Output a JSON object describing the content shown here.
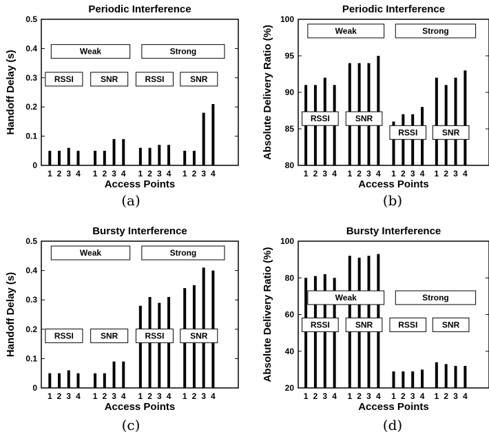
{
  "chart_data": [
    {
      "type": "bar",
      "title": "Periodic Interference",
      "xlabel": "Access Points",
      "ylabel": "Handoff Delay (s)",
      "ylim": [
        0,
        0.5
      ],
      "yticks": [
        "0",
        "0.1",
        "0.2",
        "0.3",
        "0.4",
        "0.5"
      ],
      "categories": [
        "1",
        "2",
        "3",
        "4"
      ],
      "series": [
        {
          "name": "Weak RSSI",
          "values": [
            0.05,
            0.05,
            0.06,
            0.05
          ]
        },
        {
          "name": "Weak SNR",
          "values": [
            0.05,
            0.05,
            0.09,
            0.09
          ]
        },
        {
          "name": "Strong RSSI",
          "values": [
            0.06,
            0.06,
            0.07,
            0.07
          ]
        },
        {
          "name": "Strong SNR",
          "values": [
            0.05,
            0.05,
            0.18,
            0.21
          ]
        }
      ],
      "annotations": [
        {
          "text": "Weak",
          "level": "top",
          "span": "left"
        },
        {
          "text": "Strong",
          "level": "top",
          "span": "right"
        },
        {
          "text": "RSSI",
          "level": "low",
          "group": 0
        },
        {
          "text": "SNR",
          "level": "low",
          "group": 1
        },
        {
          "text": "RSSI",
          "level": "low",
          "group": 2
        },
        {
          "text": "SNR",
          "level": "low",
          "group": 3
        }
      ],
      "caption": "(a)"
    },
    {
      "type": "bar",
      "title": "Periodic Interference",
      "xlabel": "Access Points",
      "ylabel": "Absolute Delivery Ratio (%)",
      "ylim": [
        80,
        100
      ],
      "yticks": [
        "80",
        "85",
        "90",
        "95",
        "100"
      ],
      "categories": [
        "1",
        "2",
        "3",
        "4"
      ],
      "series": [
        {
          "name": "Weak RSSI",
          "values": [
            91,
            91,
            92,
            91
          ]
        },
        {
          "name": "Weak SNR",
          "values": [
            94,
            94,
            94,
            95
          ]
        },
        {
          "name": "Strong RSSI",
          "values": [
            86,
            87,
            87,
            88
          ]
        },
        {
          "name": "Strong SNR",
          "values": [
            92,
            91,
            92,
            93
          ]
        }
      ],
      "annotations": [
        {
          "text": "Weak",
          "level": "top",
          "span": "left"
        },
        {
          "text": "Strong",
          "level": "top",
          "span": "right"
        },
        {
          "text": "RSSI",
          "level": "mid",
          "group": 0
        },
        {
          "text": "SNR",
          "level": "mid",
          "group": 1
        },
        {
          "text": "RSSI",
          "level": "low",
          "group": 2
        },
        {
          "text": "SNR",
          "level": "low",
          "group": 3
        }
      ],
      "caption": "(b)"
    },
    {
      "type": "bar",
      "title": "Bursty Interference",
      "xlabel": "Access Points",
      "ylabel": "Handoff Delay (s)",
      "ylim": [
        0,
        0.5
      ],
      "yticks": [
        "0",
        "0.1",
        "0.2",
        "0.3",
        "0.4",
        "0.5"
      ],
      "categories": [
        "1",
        "2",
        "3",
        "4"
      ],
      "series": [
        {
          "name": "Weak RSSI",
          "values": [
            0.05,
            0.05,
            0.06,
            0.05
          ]
        },
        {
          "name": "Weak SNR",
          "values": [
            0.05,
            0.05,
            0.09,
            0.09
          ]
        },
        {
          "name": "Strong RSSI",
          "values": [
            0.28,
            0.31,
            0.29,
            0.31
          ]
        },
        {
          "name": "Strong SNR",
          "values": [
            0.34,
            0.35,
            0.41,
            0.4
          ]
        }
      ],
      "annotations": [
        {
          "text": "Weak",
          "level": "top",
          "span": "left"
        },
        {
          "text": "Strong",
          "level": "top",
          "span": "right"
        },
        {
          "text": "RSSI",
          "level": "low",
          "group": 0
        },
        {
          "text": "SNR",
          "level": "low",
          "group": 1
        },
        {
          "text": "RSSI",
          "level": "low",
          "group": 2
        },
        {
          "text": "SNR",
          "level": "low",
          "group": 3
        }
      ],
      "caption": "(c)"
    },
    {
      "type": "bar",
      "title": "Bursty Interference",
      "xlabel": "Access Points",
      "ylabel": "Absolute Delivery Ratio (%)",
      "ylim": [
        20,
        100
      ],
      "yticks": [
        "20",
        "40",
        "60",
        "80",
        "100"
      ],
      "categories": [
        "1",
        "2",
        "3",
        "4"
      ],
      "series": [
        {
          "name": "Weak RSSI",
          "values": [
            80,
            81,
            82,
            80
          ]
        },
        {
          "name": "Weak SNR",
          "values": [
            92,
            91,
            92,
            93
          ]
        },
        {
          "name": "Strong RSSI",
          "values": [
            29,
            29,
            29,
            30
          ]
        },
        {
          "name": "Strong SNR",
          "values": [
            34,
            33,
            32,
            32
          ]
        }
      ],
      "annotations": [
        {
          "text": "Weak",
          "level": "top",
          "span": "left"
        },
        {
          "text": "Strong",
          "level": "top",
          "span": "right"
        },
        {
          "text": "RSSI",
          "level": "mid",
          "group": 0
        },
        {
          "text": "SNR",
          "level": "mid",
          "group": 1
        },
        {
          "text": "RSSI",
          "level": "mid",
          "group": 2
        },
        {
          "text": "SNR",
          "level": "mid",
          "group": 3
        }
      ],
      "caption": "(d)"
    }
  ]
}
